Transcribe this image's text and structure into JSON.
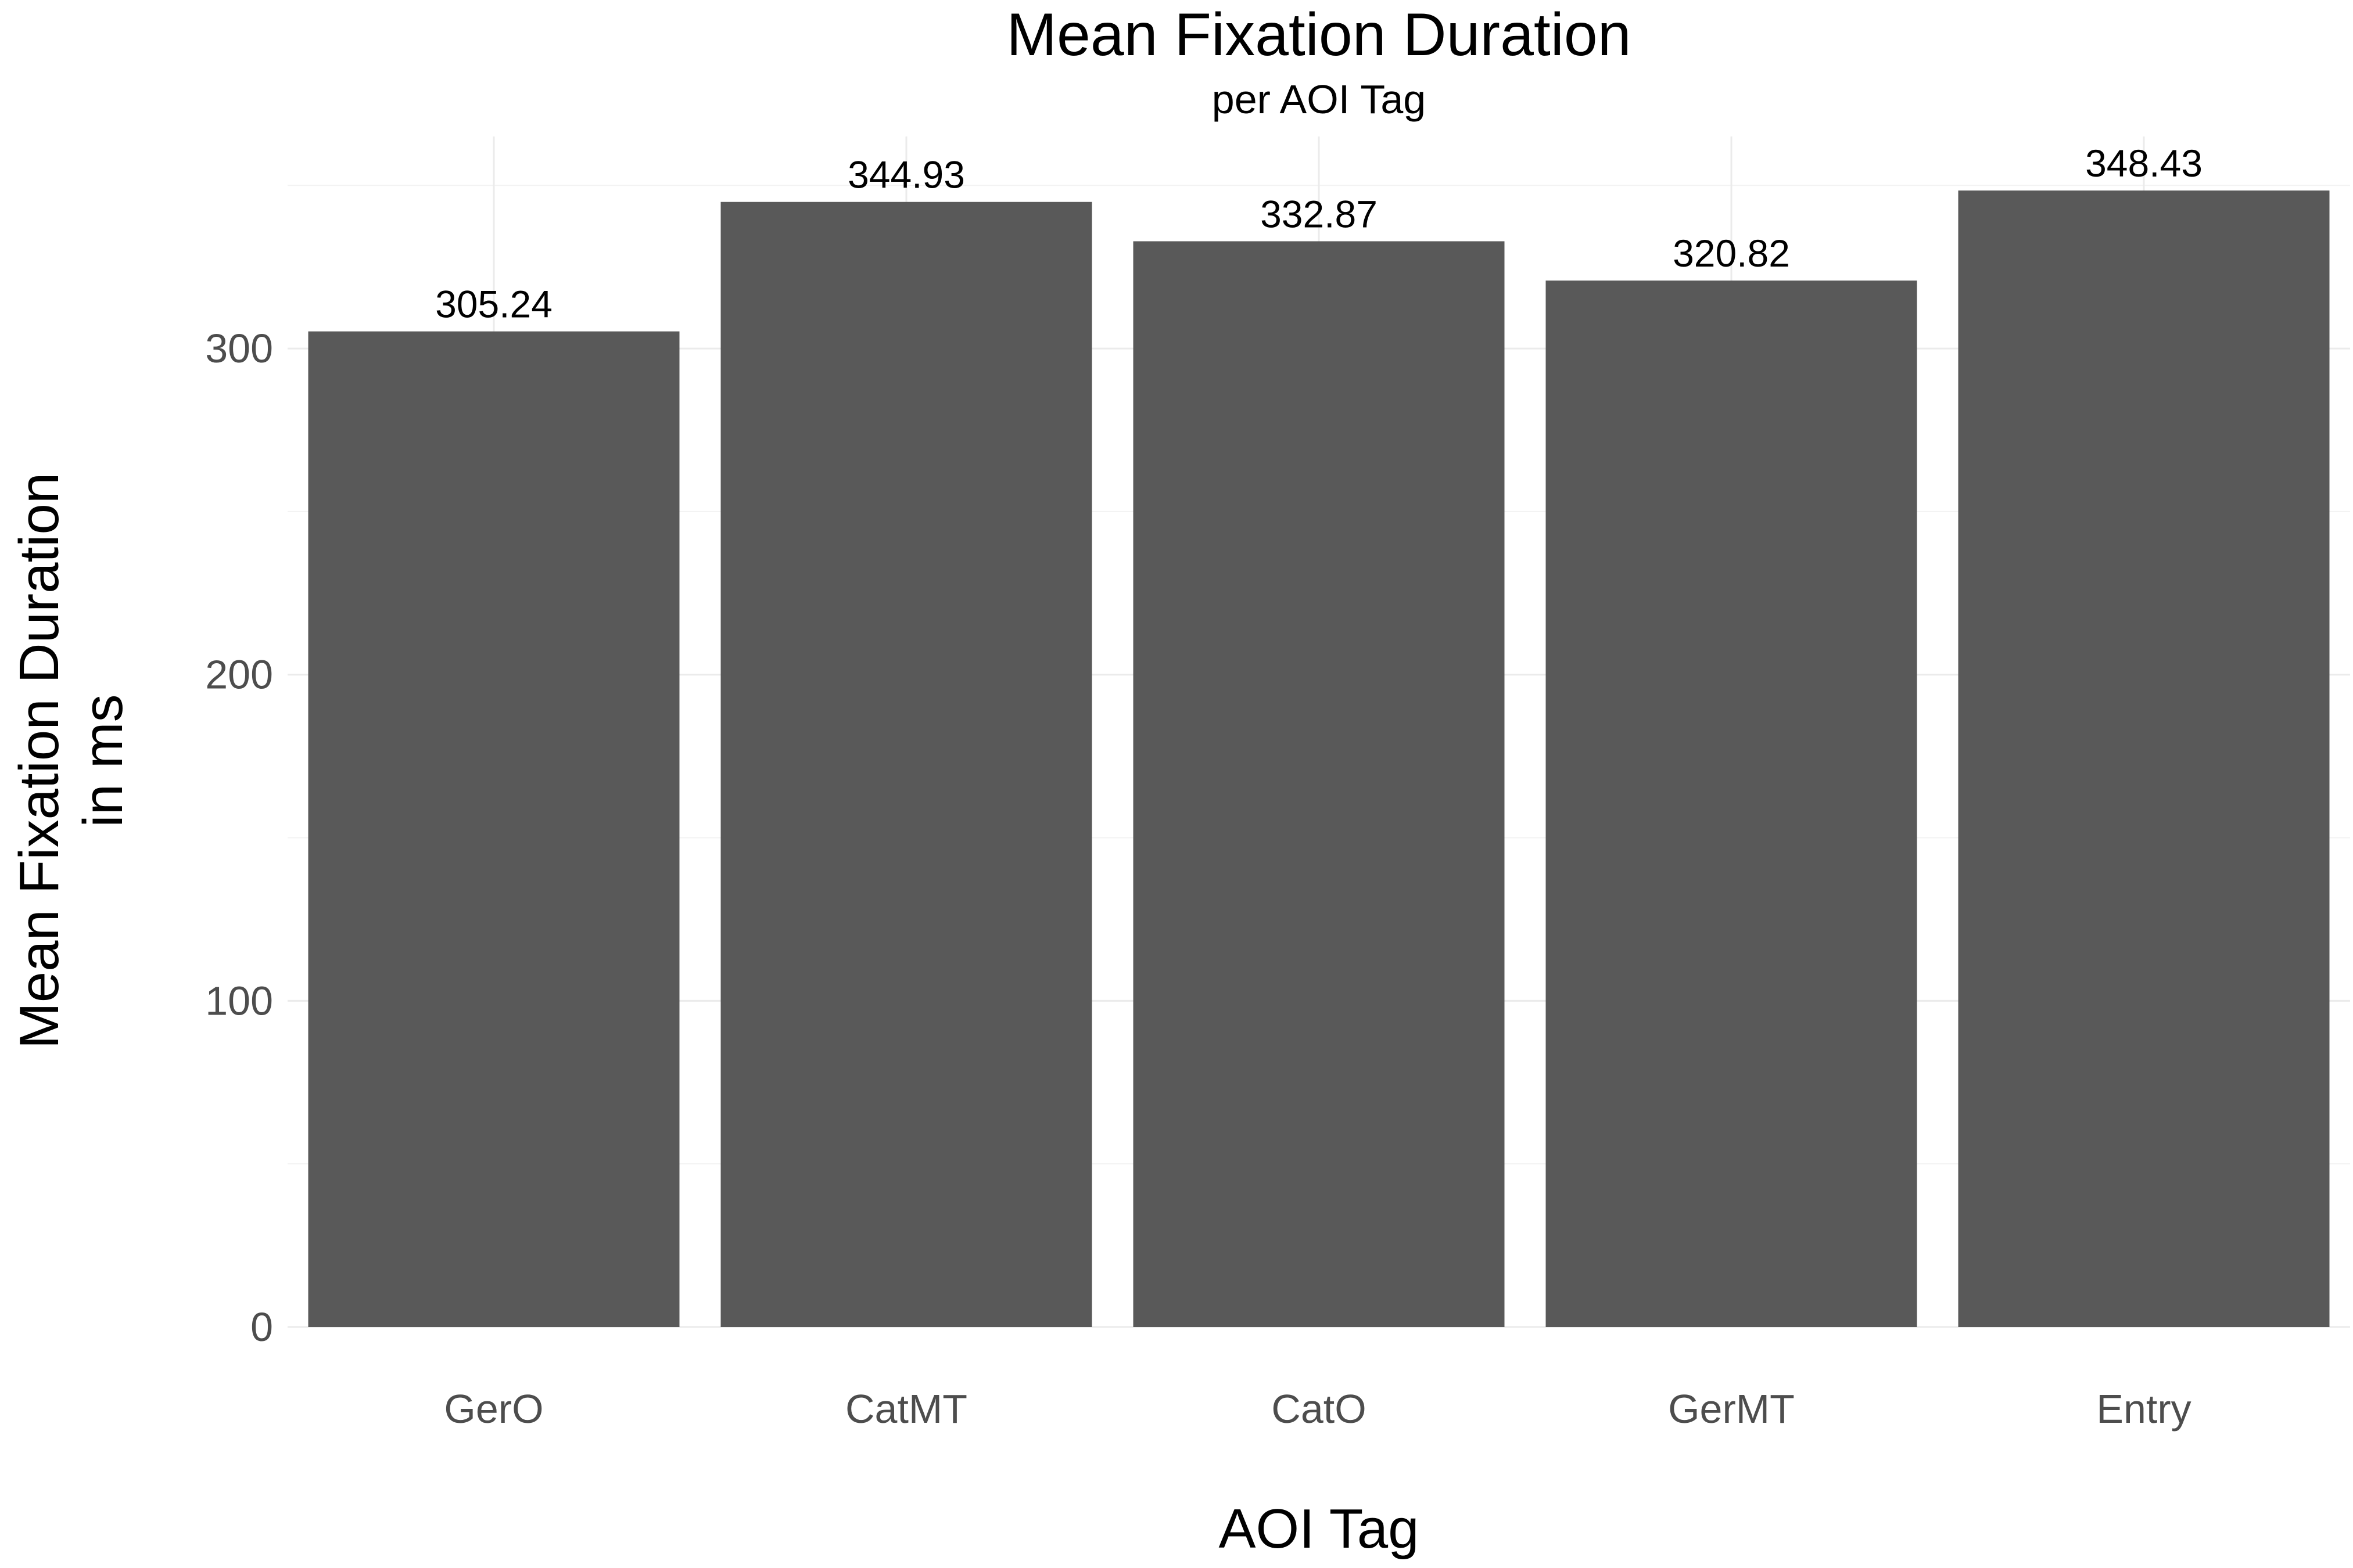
{
  "chart_data": {
    "type": "bar",
    "title": "Mean Fixation Duration",
    "subtitle": "per AOI Tag",
    "xlabel": "AOI Tag",
    "ylabel_lines": [
      "Mean Fixation Duration",
      "in ms"
    ],
    "categories": [
      "GerO",
      "CatMT",
      "CatO",
      "GerMT",
      "Entry"
    ],
    "values": [
      305.24,
      344.93,
      332.87,
      320.82,
      348.43
    ],
    "data_labels": [
      "305.24",
      "344.93",
      "332.87",
      "320.82",
      "348.43"
    ],
    "ylim": [
      0,
      365
    ],
    "yticks": [
      0,
      100,
      200,
      300
    ],
    "grid": true,
    "legend": "none",
    "bar_color": "#595959"
  }
}
